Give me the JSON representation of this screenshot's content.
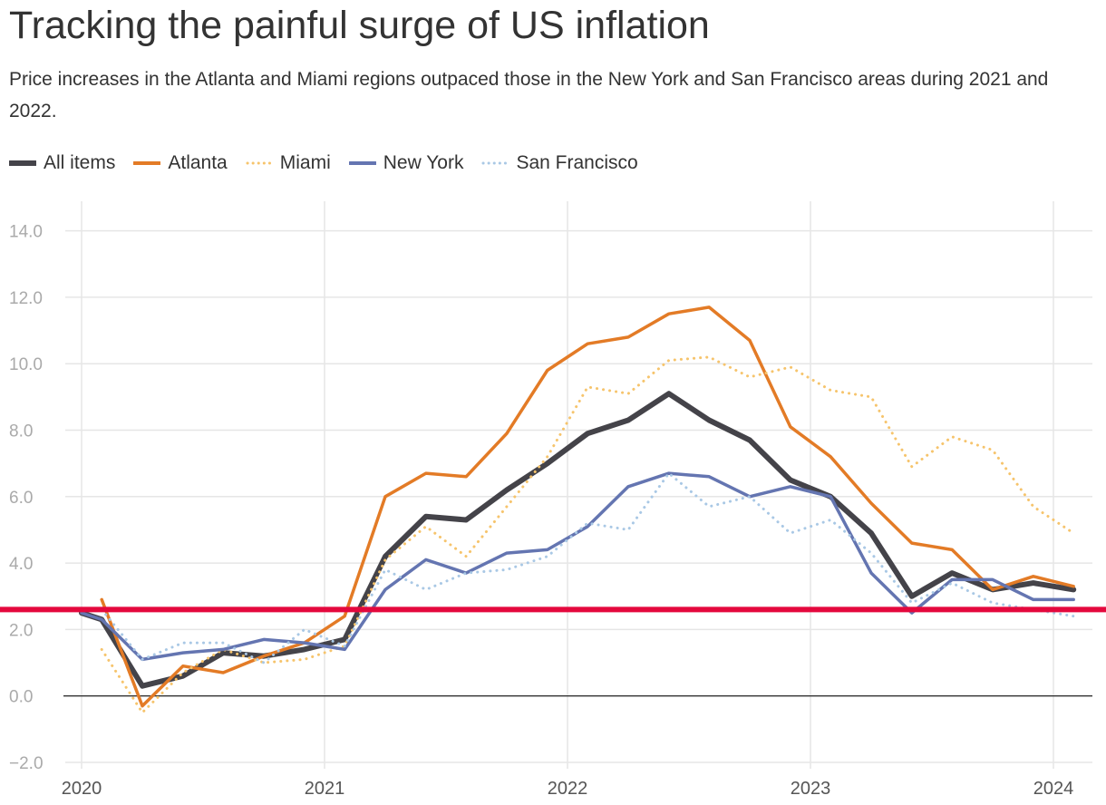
{
  "chart_data": {
    "type": "line",
    "title": "Tracking the painful surge of US inflation",
    "subtitle": "Price increases in the Atlanta and Miami regions outpaced those in the New York and San Francisco areas during 2021 and 2022.",
    "xlabel": "",
    "ylabel": "",
    "ylim": [
      -2,
      14.5
    ],
    "xlim": [
      2020.0,
      2024.17
    ],
    "y_ticks": [
      -2,
      0,
      2,
      4,
      6,
      8,
      10,
      12,
      14
    ],
    "y_tick_labels": [
      "−2.0",
      "0.0",
      "2.0",
      "4.0",
      "6.0",
      "8.0",
      "10.0",
      "12.0",
      "14.0"
    ],
    "x_ticks": [
      2020,
      2021,
      2022,
      2023,
      2024
    ],
    "x_tick_labels": [
      "2020",
      "2021",
      "2022",
      "2023",
      "2024"
    ],
    "legend_position": "top-left",
    "grid": true,
    "reference_line": {
      "value": 2.6,
      "color": "#e4083d",
      "label": ""
    },
    "series": [
      {
        "name": "All items",
        "color": "#444349",
        "style": "solid",
        "width": 6,
        "x": [
          2020.0,
          2020.083,
          2020.25,
          2020.417,
          2020.583,
          2020.75,
          2020.917,
          2021.083,
          2021.25,
          2021.417,
          2021.583,
          2021.75,
          2021.917,
          2022.083,
          2022.25,
          2022.417,
          2022.583,
          2022.75,
          2022.917,
          2023.083,
          2023.25,
          2023.417,
          2023.583,
          2023.75,
          2023.917,
          2024.083
        ],
        "values": [
          2.5,
          2.3,
          0.3,
          0.6,
          1.3,
          1.2,
          1.4,
          1.7,
          4.2,
          5.4,
          5.3,
          6.2,
          7.0,
          7.9,
          8.3,
          9.1,
          8.3,
          7.7,
          6.5,
          6.0,
          4.9,
          3.0,
          3.7,
          3.2,
          3.4,
          3.2
        ]
      },
      {
        "name": "Atlanta",
        "color": "#e37b26",
        "style": "solid",
        "width": 3.5,
        "x": [
          2020.083,
          2020.25,
          2020.417,
          2020.583,
          2020.75,
          2020.917,
          2021.083,
          2021.25,
          2021.417,
          2021.583,
          2021.75,
          2021.917,
          2022.083,
          2022.25,
          2022.417,
          2022.583,
          2022.75,
          2022.917,
          2023.083,
          2023.25,
          2023.417,
          2023.583,
          2023.75,
          2023.917,
          2024.083
        ],
        "values": [
          2.9,
          -0.3,
          0.9,
          0.7,
          1.2,
          1.6,
          2.4,
          6.0,
          6.7,
          6.6,
          7.9,
          9.8,
          10.6,
          10.8,
          11.5,
          11.7,
          10.7,
          8.1,
          7.2,
          5.8,
          4.6,
          4.4,
          3.2,
          3.6,
          3.3
        ]
      },
      {
        "name": "Miami",
        "color": "#f6c46c",
        "style": "dotted",
        "width": 3,
        "x": [
          2020.083,
          2020.25,
          2020.417,
          2020.583,
          2020.75,
          2020.917,
          2021.083,
          2021.25,
          2021.417,
          2021.583,
          2021.75,
          2021.917,
          2022.083,
          2022.25,
          2022.417,
          2022.583,
          2022.75,
          2022.917,
          2023.083,
          2023.25,
          2023.417,
          2023.583,
          2023.75,
          2023.917,
          2024.083
        ],
        "values": [
          1.4,
          -0.5,
          0.7,
          1.4,
          1.0,
          1.1,
          1.5,
          4.1,
          5.1,
          4.2,
          5.7,
          7.2,
          9.3,
          9.1,
          10.1,
          10.2,
          9.6,
          9.9,
          9.2,
          9.0,
          6.9,
          7.8,
          7.4,
          5.7,
          4.9
        ]
      },
      {
        "name": "New York",
        "color": "#6475b1",
        "style": "solid",
        "width": 3.5,
        "x": [
          2020.0,
          2020.083,
          2020.25,
          2020.417,
          2020.583,
          2020.75,
          2020.917,
          2021.083,
          2021.25,
          2021.417,
          2021.583,
          2021.75,
          2021.917,
          2022.083,
          2022.25,
          2022.417,
          2022.583,
          2022.75,
          2022.917,
          2023.083,
          2023.25,
          2023.417,
          2023.583,
          2023.75,
          2023.917,
          2024.083
        ],
        "values": [
          2.5,
          2.3,
          1.1,
          1.3,
          1.4,
          1.7,
          1.6,
          1.4,
          3.2,
          4.1,
          3.7,
          4.3,
          4.4,
          5.1,
          6.3,
          6.7,
          6.6,
          6.0,
          6.3,
          6.0,
          3.7,
          2.5,
          3.5,
          3.5,
          2.9,
          2.9
        ]
      },
      {
        "name": "San Francisco",
        "color": "#a9c8e5",
        "style": "dotted",
        "width": 3,
        "x": [
          2020.083,
          2020.25,
          2020.417,
          2020.583,
          2020.75,
          2020.917,
          2021.083,
          2021.25,
          2021.417,
          2021.583,
          2021.75,
          2021.917,
          2022.083,
          2022.25,
          2022.417,
          2022.583,
          2022.75,
          2022.917,
          2023.083,
          2023.25,
          2023.417,
          2023.583,
          2023.75,
          2023.917,
          2024.083
        ],
        "values": [
          2.6,
          1.1,
          1.6,
          1.6,
          1.0,
          2.0,
          1.5,
          3.8,
          3.2,
          3.7,
          3.8,
          4.2,
          5.2,
          5.0,
          6.7,
          5.7,
          6.0,
          4.9,
          5.3,
          4.3,
          2.8,
          3.4,
          2.8,
          2.6,
          2.4
        ]
      }
    ]
  }
}
